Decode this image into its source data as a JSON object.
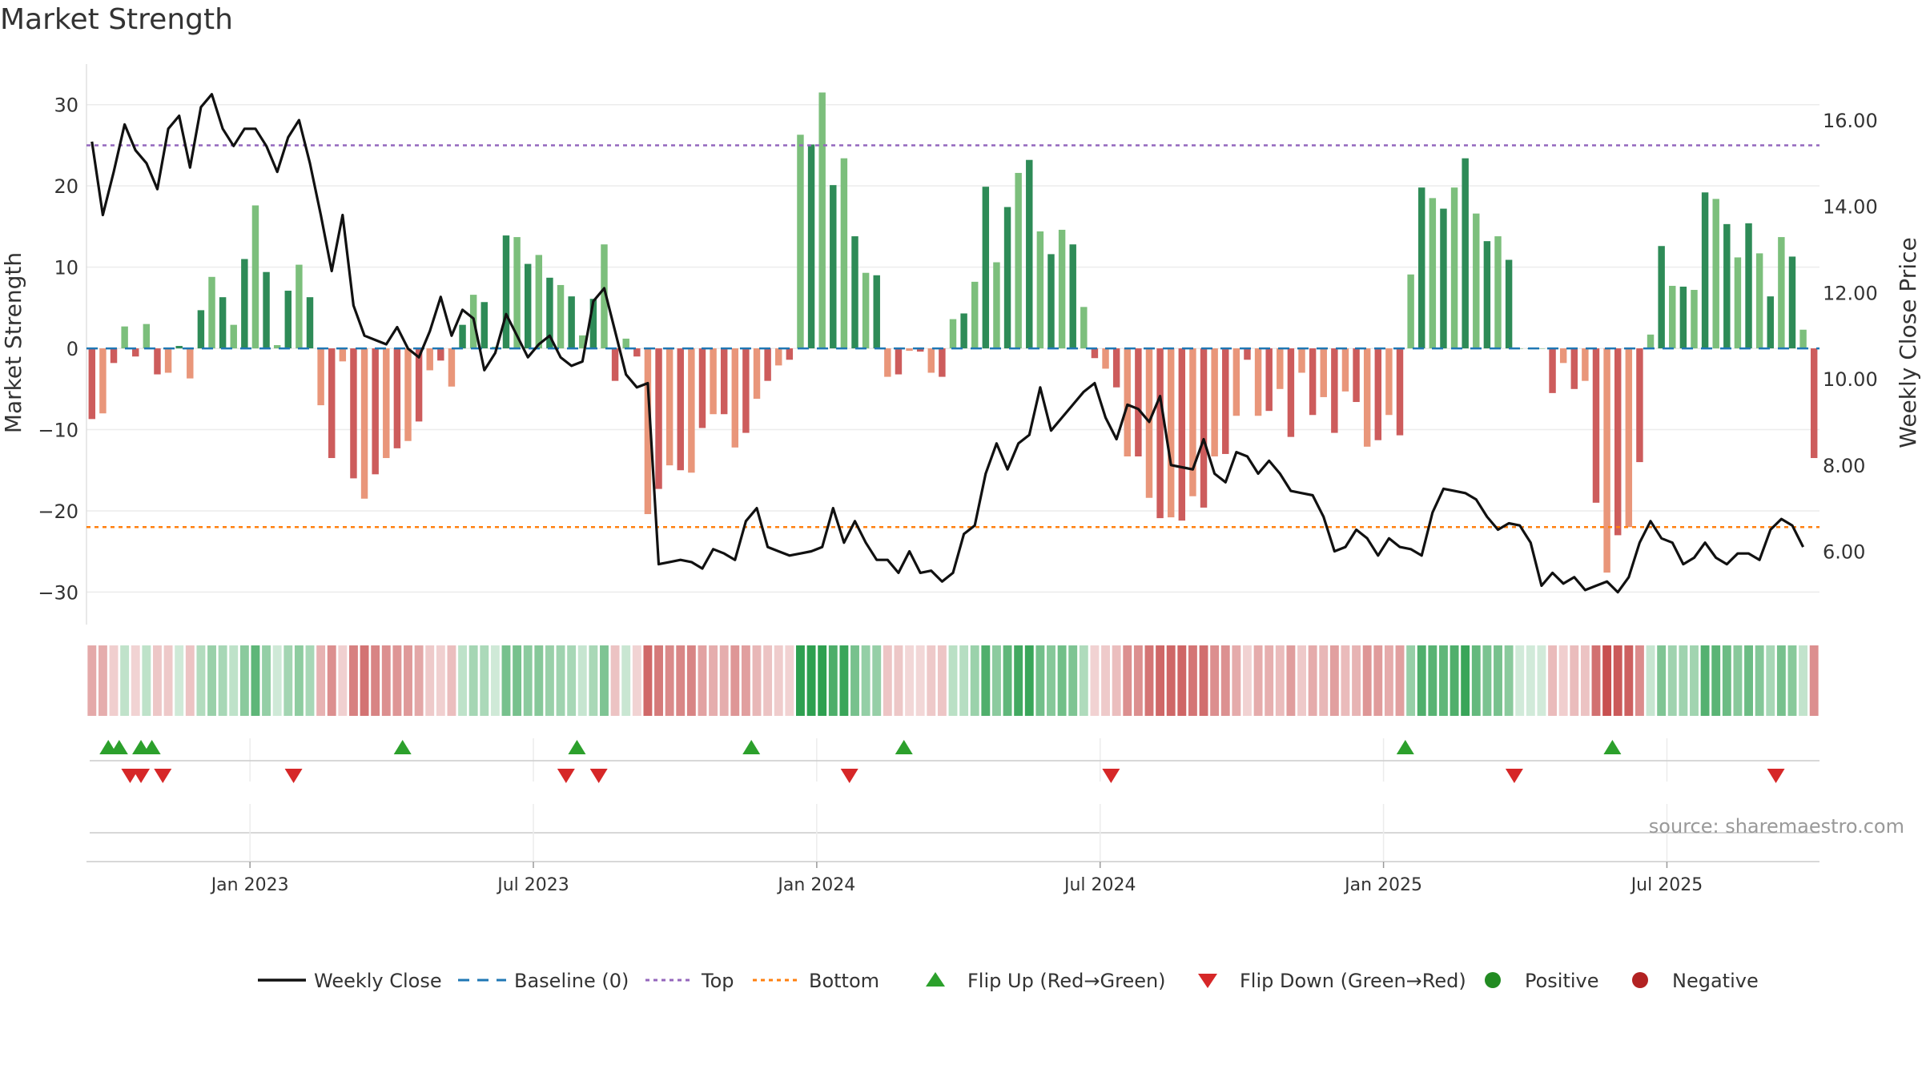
{
  "chart_data": {
    "type": "bar+line",
    "title": "Market Strength",
    "ylabel": "Market Strength",
    "y2label": "Weekly Close Price",
    "ylim": [
      -34,
      35
    ],
    "y2lim": [
      4.3,
      17.3
    ],
    "y_ticks": [
      30,
      20,
      10,
      0,
      -10,
      -20,
      -30
    ],
    "y_tick_labels": [
      "30",
      "20",
      "10",
      "0",
      "−10",
      "−20",
      "−30"
    ],
    "y2_ticks": [
      16,
      14,
      12,
      10,
      8,
      6
    ],
    "y2_tick_labels": [
      "16.00",
      "14.00",
      "12.00",
      "10.00",
      "8.00",
      "6.00"
    ],
    "x_tick_labels": [
      "Jan 2023",
      "Jul 2023",
      "Jan 2024",
      "Jul 2024",
      "Jan 2025",
      "Jul 2025"
    ],
    "x_tick_weeks": [
      15,
      41,
      67,
      93,
      119,
      145
    ],
    "top_level": 25,
    "bottom_level": -22,
    "strength": [
      -8.7,
      -8,
      -1.8,
      2.7,
      -1,
      3.0,
      -3.2,
      -3,
      0.3,
      -3.7,
      4.7,
      8.8,
      6.3,
      2.9,
      11.0,
      17.6,
      9.4,
      0.4,
      7.1,
      10.3,
      6.3,
      -7,
      -13.5,
      -1.6,
      -16,
      -18.5,
      -15.5,
      -13.5,
      -12.3,
      -11.4,
      -9,
      -2.7,
      -1.5,
      -4.7,
      2.9,
      6.6,
      5.7,
      0.2,
      13.9,
      13.7,
      10.4,
      11.5,
      8.7,
      7.8,
      6.4,
      1.6,
      6.1,
      12.8,
      -4,
      1.2,
      -1,
      -20.4,
      -17.3,
      -14.4,
      -15,
      -15.3,
      -9.8,
      -8.1,
      -8.1,
      -12.2,
      -10.4,
      -6.2,
      -4,
      -2.1,
      -1.4,
      26.3,
      25.1,
      31.5,
      20.1,
      23.4,
      13.8,
      9.3,
      9,
      -3.5,
      -3.2,
      -0.3,
      -0.4,
      -3,
      -3.5,
      3.6,
      4.3,
      8.2,
      19.9,
      10.6,
      17.4,
      21.6,
      23.2,
      14.4,
      11.6,
      14.6,
      12.8,
      5.1,
      -1.2,
      -2.5,
      -4.8,
      -13.3,
      -13.3,
      -18.4,
      -20.9,
      -20.8,
      -21.2,
      -18.2,
      -19.6,
      -13.3,
      -13,
      -8.3,
      -1.4,
      -8.3,
      -7.7,
      -5,
      -10.9,
      -3,
      -8.2,
      -6,
      -10.4,
      -5.3,
      -6.6,
      -12.1,
      -11.3,
      -8.2,
      -10.7,
      9.1,
      19.8,
      18.5,
      17.2,
      19.8,
      23.4,
      16.6,
      13.2,
      13.8,
      10.9,
      0,
      0,
      0,
      -5.5,
      -1.8,
      -5,
      -4,
      -19,
      -27.6,
      -23,
      -22,
      -14,
      1.7,
      12.6,
      7.7,
      7.6,
      7.2,
      19.2,
      18.4,
      15.3,
      11.2,
      15.4,
      11.7,
      6.4,
      13.7,
      11.3,
      2.3,
      -13.5
    ],
    "weekly_close": [
      15.5,
      13.8,
      14.8,
      15.9,
      15.3,
      15,
      14.4,
      15.8,
      16.1,
      14.9,
      16.3,
      16.6,
      15.8,
      15.4,
      15.8,
      15.8,
      15.4,
      14.8,
      15.6,
      16,
      15,
      13.8,
      12.5,
      13.8,
      11.7,
      11,
      10.9,
      10.8,
      11.2,
      10.7,
      10.5,
      11.1,
      11.9,
      11,
      11.6,
      11.4,
      10.2,
      10.6,
      11.5,
      11,
      10.5,
      10.8,
      11,
      10.5,
      10.3,
      10.4,
      11.8,
      12.1,
      11.1,
      10.1,
      9.8,
      9.9,
      5.7,
      5.75,
      5.8,
      5.75,
      5.6,
      6.05,
      5.95,
      5.8,
      6.7,
      7,
      6.1,
      6,
      5.9,
      5.95,
      6,
      6.1,
      7,
      6.2,
      6.7,
      6.2,
      5.8,
      5.8,
      5.5,
      6,
      5.5,
      5.55,
      5.3,
      5.5,
      6.4,
      6.6,
      7.8,
      8.5,
      7.9,
      8.5,
      8.7,
      9.8,
      8.8,
      9.1,
      9.4,
      9.7,
      9.9,
      9.1,
      8.6,
      9.4,
      9.3,
      9,
      9.6,
      8,
      7.95,
      7.9,
      8.6,
      7.8,
      7.6,
      8.3,
      8.2,
      7.8,
      8.1,
      7.8,
      7.4,
      7.35,
      7.3,
      6.8,
      6.0,
      6.1,
      6.5,
      6.3,
      5.9,
      6.3,
      6.1,
      6.05,
      5.9,
      6.9,
      7.45,
      7.4,
      7.35,
      7.2,
      6.8,
      6.5,
      6.65,
      6.6,
      6.2,
      5.2,
      5.5,
      5.25,
      5.4,
      5.1,
      5.2,
      5.3,
      5.05,
      5.4,
      6.2,
      6.7,
      6.3,
      6.2,
      5.7,
      5.85,
      6.2,
      5.85,
      5.7,
      5.95,
      5.95,
      5.8,
      6.5,
      6.75,
      6.6,
      6.1
    ],
    "flip_up_weeks": [
      2,
      3,
      5,
      6,
      29,
      45,
      61,
      75,
      121,
      140
    ],
    "flip_down_weeks": [
      4,
      5,
      7,
      19,
      44,
      47,
      70,
      94,
      131,
      155
    ],
    "legend": [
      "Weekly Close",
      "Baseline (0)",
      "Top",
      "Bottom",
      "Flip Up (Red→Green)",
      "Flip Down (Green→Red)",
      "Positive",
      "Negative"
    ],
    "legend_position": "bottom-center",
    "grid": true
  },
  "source_text": "source: sharemaestro.com",
  "colors": {
    "pos_dark": "#2e8b57",
    "pos_light": "#7cbf7c",
    "neg_dark": "#cd5c5c",
    "neg_light": "#e9967a",
    "line": "#111111",
    "baseline": "#1f77b4",
    "top": "#9467bd",
    "bottom": "#ff7f0e",
    "flip_up": "#2ca02c",
    "flip_down": "#d62728",
    "positive_dot": "#228b22",
    "negative_dot": "#b22222"
  }
}
